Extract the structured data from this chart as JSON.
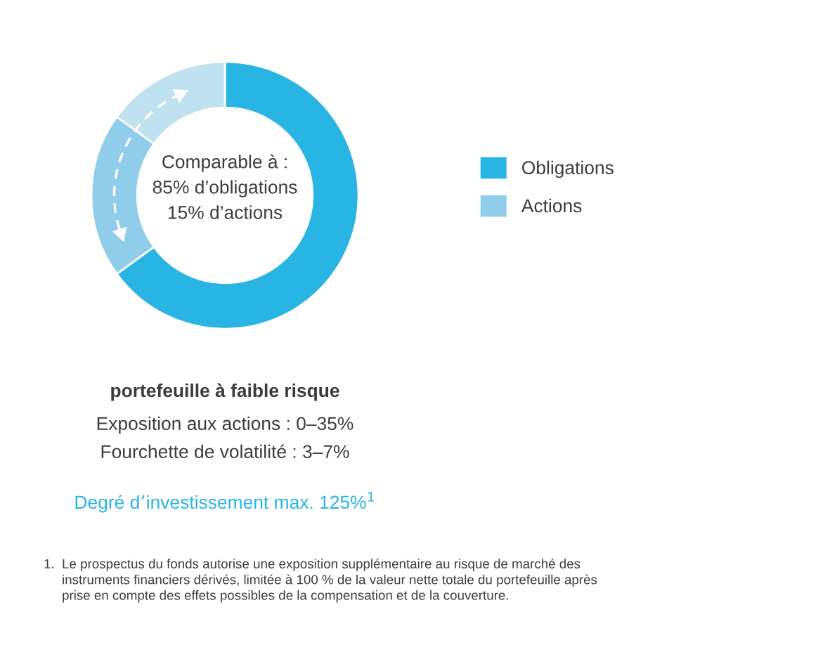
{
  "chart_data": {
    "type": "donut",
    "categories": [
      "Obligations",
      "Actions",
      null
    ],
    "values": [
      65,
      20,
      15
    ],
    "colors": [
      "#29b5e3",
      "#8fcdea",
      "#bfe1f0"
    ],
    "legend": "right",
    "title": "portefeuille à faible risque",
    "annotations": [
      "Comparable à :\n85% d’obligations\n15% d’actions",
      "Exposition aux actions : 0–35%",
      "Fourchette de volatilité : 3–7%",
      "Degré d’investissement max. 125%$^{1}$",
      "1.  Le prospectus du fonds autorise une exposition supplémentaire au risque de marché des\n     instruments financiers dérivés, limitée à 100 % de la valeur nette totale du portefeuille après\n     prise en compte des effets possibles de la compensation et de la couverture."
    ]
  }
}
